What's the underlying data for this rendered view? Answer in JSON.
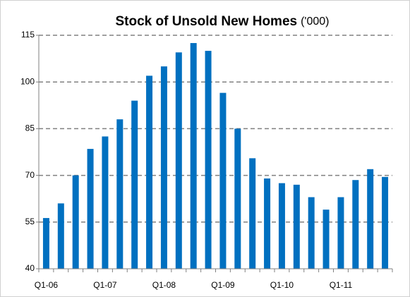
{
  "chart_data": {
    "type": "bar",
    "title": "Stock of Unsold New Homes",
    "title_unit": "('000)",
    "categories": [
      "Q1-06",
      null,
      null,
      null,
      "Q1-07",
      null,
      null,
      null,
      "Q1-08",
      null,
      null,
      null,
      "Q1-09",
      null,
      null,
      null,
      "Q1-10",
      null,
      null,
      null,
      "Q1-11",
      null,
      null,
      null
    ],
    "values": [
      56.3,
      61,
      70,
      78.5,
      82.5,
      88,
      94,
      102,
      105,
      109.5,
      112.5,
      110,
      96.5,
      85,
      75.5,
      69,
      67.5,
      67,
      63,
      59,
      63,
      68.5,
      72,
      69.5
    ],
    "color": "#0070c0",
    "ylim": [
      40,
      115
    ],
    "yticks": [
      40,
      55,
      70,
      85,
      100,
      115
    ],
    "grid": true
  }
}
